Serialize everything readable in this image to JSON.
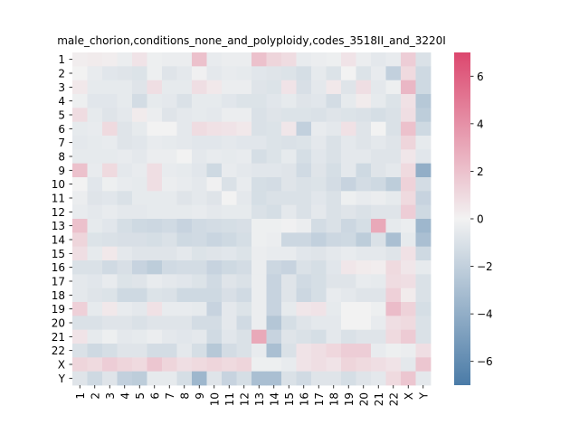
{
  "chart_data": {
    "type": "heatmap",
    "title": "male_chorion,conditions_none_and_polyploidy,codes_3518II_and_3220I",
    "xlabel": "",
    "ylabel": "",
    "x_labels": [
      "1",
      "2",
      "3",
      "4",
      "5",
      "6",
      "7",
      "8",
      "9",
      "10",
      "11",
      "12",
      "13",
      "14",
      "15",
      "16",
      "17",
      "18",
      "19",
      "20",
      "21",
      "22",
      "X",
      "Y"
    ],
    "y_labels": [
      "1",
      "2",
      "3",
      "4",
      "5",
      "6",
      "7",
      "8",
      "9",
      "10",
      "11",
      "12",
      "13",
      "14",
      "15",
      "16",
      "17",
      "18",
      "19",
      "20",
      "21",
      "22",
      "X",
      "Y"
    ],
    "colorbar": {
      "vmin": -7,
      "vmax": 7,
      "ticks": [
        -6,
        -4,
        -2,
        0,
        2,
        4,
        6
      ],
      "tick_labels": [
        "−6",
        "−4",
        "−2",
        "0",
        "2",
        "4",
        "6"
      ],
      "colormap": "diverging steel-blue to white to rose",
      "color_low": "#4a7ba7",
      "color_mid": "#f2f2f2",
      "color_high": "#dc476e"
    },
    "values": [
      [
        0.2,
        0.3,
        0.2,
        -0.3,
        0.6,
        -0.2,
        -0.3,
        -0.3,
        2.0,
        -0.4,
        -0.3,
        -0.3,
        2.0,
        1.2,
        0.9,
        -0.4,
        -0.3,
        -0.2,
        0.6,
        -0.3,
        -0.6,
        -0.4,
        1.5,
        -1.0
      ],
      [
        0.0,
        -0.4,
        -0.7,
        -0.8,
        -0.9,
        -0.2,
        -0.8,
        -0.6,
        -0.1,
        -0.6,
        -0.4,
        -0.5,
        -0.7,
        -0.8,
        -0.9,
        -1.2,
        -0.5,
        -0.9,
        0.0,
        -0.9,
        -0.4,
        -2.0,
        1.0,
        -1.5
      ],
      [
        0.4,
        -0.5,
        -0.5,
        -0.5,
        -0.8,
        0.8,
        -0.5,
        -0.5,
        0.8,
        0.4,
        -0.3,
        -0.3,
        -0.8,
        -0.9,
        0.6,
        -1.1,
        -0.6,
        0.4,
        -0.8,
        0.8,
        -0.6,
        -0.2,
        2.4,
        -1.5
      ],
      [
        -0.2,
        -0.7,
        -0.7,
        -0.5,
        -1.3,
        -0.5,
        -0.6,
        -1.0,
        -0.5,
        -0.5,
        -0.7,
        -0.9,
        -0.9,
        -0.7,
        -0.5,
        -0.8,
        -0.7,
        -1.3,
        -0.5,
        0.3,
        -0.5,
        -0.9,
        0.7,
        -2.5
      ],
      [
        0.9,
        -0.5,
        -0.8,
        -0.6,
        0.3,
        -0.3,
        -0.8,
        -0.6,
        -0.5,
        -0.6,
        -0.3,
        -0.3,
        -1.0,
        -0.8,
        -0.9,
        -0.9,
        -1.0,
        -0.8,
        -0.9,
        -1.0,
        -1.2,
        -1.0,
        0.8,
        -2.2
      ],
      [
        -0.5,
        -0.4,
        1.0,
        -0.8,
        -0.5,
        0.0,
        0.0,
        -0.6,
        0.9,
        0.7,
        0.6,
        0.4,
        -1.0,
        -0.9,
        0.5,
        -2.0,
        -0.4,
        -0.6,
        0.7,
        -0.8,
        0.0,
        -1.0,
        2.0,
        -1.5
      ],
      [
        -0.6,
        -0.5,
        -0.4,
        -0.8,
        -0.7,
        -0.4,
        -0.5,
        -0.6,
        -0.7,
        -0.7,
        -0.6,
        -0.7,
        -0.7,
        -0.9,
        -1.0,
        -0.9,
        -0.6,
        -1.0,
        -0.6,
        -0.8,
        -0.6,
        -0.8,
        1.2,
        -0.5
      ],
      [
        -0.5,
        -0.5,
        -0.5,
        -0.4,
        -0.6,
        -0.3,
        -0.3,
        0.0,
        -0.6,
        -0.4,
        -0.5,
        -0.4,
        -1.2,
        -0.9,
        -0.5,
        -1.2,
        -0.7,
        -1.0,
        -0.6,
        -0.6,
        -0.8,
        -0.8,
        0.5,
        -0.7
      ],
      [
        2.0,
        -0.4,
        1.0,
        -0.6,
        -0.4,
        0.8,
        -0.4,
        -0.5,
        -0.7,
        -1.5,
        -0.4,
        -0.6,
        -0.7,
        -0.7,
        -0.8,
        -1.4,
        -0.8,
        -1.2,
        -0.6,
        -1.5,
        -0.8,
        -0.6,
        1.0,
        -4.0
      ],
      [
        0.0,
        -0.7,
        -0.2,
        -0.4,
        -0.5,
        0.8,
        -0.3,
        -0.4,
        -0.6,
        -0.1,
        -1.0,
        -0.4,
        -1.2,
        -1.3,
        -0.8,
        -1.0,
        -0.9,
        -1.3,
        -1.8,
        -1.3,
        -1.5,
        -2.2,
        1.3,
        -1.3
      ],
      [
        -0.3,
        -0.8,
        -0.7,
        -1.0,
        -0.5,
        -0.5,
        -0.5,
        -0.8,
        -0.6,
        -0.8,
        0.0,
        -0.6,
        -1.2,
        -1.0,
        -1.0,
        -1.0,
        -0.7,
        -1.0,
        -0.2,
        -0.4,
        -0.3,
        -0.5,
        1.0,
        -1.8
      ],
      [
        -0.4,
        -0.6,
        -0.4,
        -0.6,
        -0.6,
        -0.5,
        -0.5,
        -0.5,
        -0.4,
        -0.6,
        -0.5,
        -0.5,
        -1.0,
        -1.2,
        -0.6,
        -1.0,
        -0.6,
        -1.0,
        -0.8,
        -1.0,
        -0.8,
        -0.8,
        1.5,
        -1.5
      ],
      [
        2.0,
        -0.5,
        -0.7,
        -1.2,
        -1.5,
        -1.6,
        -1.4,
        -1.8,
        -1.4,
        -1.3,
        -1.2,
        -1.1,
        -0.2,
        -0.2,
        -0.1,
        -0.3,
        -1.3,
        -1.0,
        -1.6,
        -1.2,
        3.0,
        -0.5,
        -0.3,
        -3.5
      ],
      [
        1.2,
        -0.9,
        -1.0,
        -1.1,
        -1.1,
        -1.2,
        -1.0,
        -1.5,
        -1.4,
        -1.7,
        -1.5,
        -1.2,
        -0.2,
        -0.3,
        -1.6,
        -1.6,
        -2.0,
        -1.6,
        -1.5,
        -2.2,
        -1.0,
        -3.0,
        -0.5,
        -3.0
      ],
      [
        0.8,
        -0.5,
        0.4,
        -0.6,
        -0.8,
        -0.8,
        -0.8,
        -0.6,
        -0.9,
        -0.8,
        -0.7,
        -0.9,
        -0.3,
        -0.4,
        -0.4,
        -0.7,
        -0.8,
        -0.6,
        -0.4,
        -0.6,
        -0.6,
        -0.8,
        0.7,
        -1.5
      ],
      [
        -1.0,
        -1.0,
        -1.4,
        -1.1,
        -1.8,
        -2.2,
        -1.4,
        -1.3,
        -1.3,
        -1.8,
        -1.5,
        -1.3,
        -0.3,
        -1.6,
        -1.8,
        -1.0,
        -1.2,
        -0.7,
        0.5,
        0.3,
        0.2,
        1.0,
        0.5,
        -0.5
      ],
      [
        -0.6,
        -0.7,
        -0.4,
        -0.9,
        -0.8,
        -0.4,
        -0.6,
        -0.7,
        -0.9,
        -1.4,
        -0.8,
        -1.0,
        -0.3,
        -1.8,
        -0.8,
        -1.4,
        -1.2,
        -0.8,
        -0.8,
        -0.4,
        -0.5,
        0.9,
        0.8,
        -1.0
      ],
      [
        -0.6,
        -0.8,
        -0.9,
        -1.5,
        -1.5,
        -0.9,
        -1.0,
        -1.5,
        -1.5,
        -1.5,
        -1.1,
        -1.4,
        -0.3,
        -1.8,
        -0.8,
        -1.6,
        -1.2,
        -0.4,
        -0.6,
        -0.8,
        -0.8,
        1.4,
        0.3,
        -1.0
      ],
      [
        1.4,
        -0.5,
        0.4,
        -0.4,
        -0.6,
        0.7,
        -0.4,
        -0.4,
        -0.5,
        -1.8,
        -0.6,
        -0.9,
        -0.3,
        -1.8,
        -0.5,
        0.5,
        0.6,
        -0.5,
        0.0,
        0.0,
        -0.2,
        2.2,
        1.3,
        -1.2
      ],
      [
        -1.0,
        -1.0,
        -0.8,
        -0.8,
        -1.0,
        -0.8,
        -0.8,
        -0.8,
        -1.3,
        -1.3,
        -0.6,
        -1.4,
        -0.3,
        -2.6,
        -1.2,
        -0.8,
        -0.6,
        -0.6,
        0.0,
        0.0,
        -0.4,
        0.8,
        1.0,
        -1.0
      ],
      [
        0.6,
        -0.5,
        -0.2,
        -0.6,
        -0.5,
        -0.3,
        -0.6,
        -0.7,
        -0.6,
        -1.4,
        -0.7,
        -1.0,
        3.0,
        -1.8,
        -0.8,
        -1.0,
        -1.2,
        -0.6,
        -1.0,
        -0.8,
        -0.8,
        1.0,
        1.6,
        -1.0
      ],
      [
        -1.0,
        -1.5,
        -1.2,
        -0.8,
        -0.8,
        -1.3,
        -1.3,
        -0.6,
        -1.2,
        -2.5,
        -1.3,
        -1.0,
        -0.4,
        -3.0,
        -1.0,
        0.6,
        0.8,
        1.1,
        1.5,
        1.5,
        -0.4,
        -0.2,
        -0.3,
        0.8
      ],
      [
        1.2,
        1.0,
        1.5,
        1.2,
        1.0,
        1.8,
        1.2,
        0.8,
        1.0,
        1.2,
        1.0,
        1.2,
        -0.2,
        -0.2,
        -0.4,
        0.6,
        0.8,
        0.6,
        1.2,
        1.0,
        0.8,
        0.6,
        -0.6,
        1.8
      ],
      [
        -0.8,
        -1.5,
        -0.8,
        -2.0,
        -2.2,
        -0.5,
        -0.5,
        -1.2,
        -3.5,
        -0.8,
        -1.8,
        -1.2,
        -3.0,
        -3.0,
        -1.0,
        -1.4,
        -0.8,
        -0.8,
        -1.2,
        -0.8,
        -0.6,
        1.0,
        1.8,
        -0.6
      ]
    ]
  }
}
